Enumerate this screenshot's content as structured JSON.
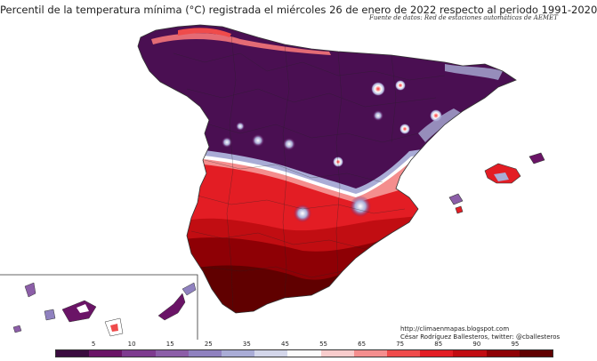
{
  "title": "Percentil de la temperatura mínima (°C) registrada el miércoles 26 de enero de 2022 respecto al periodo 1991-2020",
  "subtitle": "Fuente de datos: Red de estaciones automáticas de AEMET",
  "credits": {
    "url": "http://climaenmapas.blogspot.com",
    "author": "César Rodríguez Ballesteros, twitter: @cballesteros"
  },
  "legend": {
    "ticks": [
      "5",
      "10",
      "15",
      "25",
      "35",
      "45",
      "55",
      "65",
      "75",
      "85",
      "90",
      "95"
    ],
    "colors": [
      "#3a0b3f",
      "#6a1466",
      "#7e3b8f",
      "#8c5ea8",
      "#8f81bf",
      "#a9acd6",
      "#d3d6ea",
      "#fbfbfb",
      "#f8cccc",
      "#f48e8e",
      "#ef4b4b",
      "#e31d24",
      "#c10d12",
      "#8e0005",
      "#600000"
    ]
  }
}
